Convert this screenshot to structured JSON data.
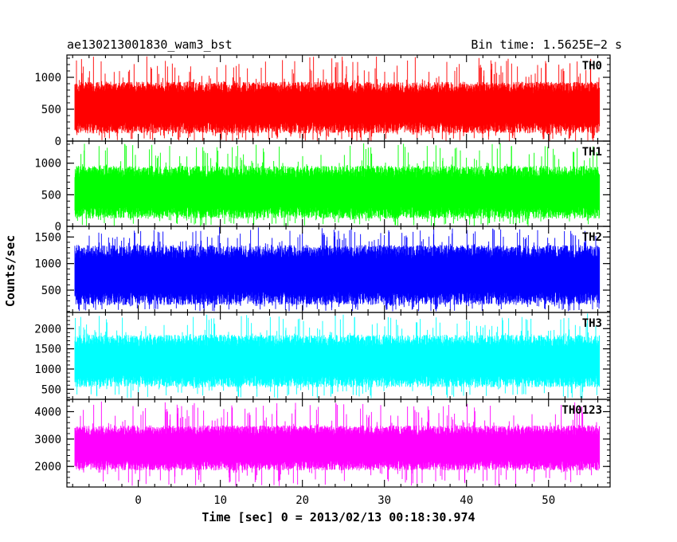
{
  "header": {
    "left_title": "ae130213001830_wam3_bst",
    "right_title": "Bin time: 1.5625E−2 s"
  },
  "chart_data": {
    "type": "line",
    "title": "ae130213001830_wam3_bst",
    "subtitle": "Bin time: 1.5625E−2 s",
    "xlabel": "Time [sec] 0 = 2013/02/13 00:18:30.974",
    "ylabel": "Counts/sec",
    "xlim": [
      -8.7,
      57.5
    ],
    "data_x_range": [
      -7.7,
      56.1
    ],
    "x_ticks": [
      0,
      10,
      20,
      30,
      40,
      50
    ],
    "x_minor_step": 2,
    "grid": false,
    "panels": [
      {
        "name": "TH0",
        "color": "#ff0000",
        "ylim": [
          0,
          1350
        ],
        "y_ticks": [
          0,
          500,
          1000
        ],
        "y_minor_step": 100,
        "typical_range": [
          120,
          930
        ],
        "max_value": 1330,
        "min_value": 0
      },
      {
        "name": "TH1",
        "color": "#00ff00",
        "ylim": [
          0,
          1350
        ],
        "y_ticks": [
          0,
          500,
          1000
        ],
        "y_minor_step": 100,
        "typical_range": [
          120,
          960
        ],
        "max_value": 1340,
        "min_value": 0
      },
      {
        "name": "TH2",
        "color": "#0000ff",
        "ylim": [
          80,
          1700
        ],
        "y_ticks": [
          500,
          1000,
          1500
        ],
        "y_minor_step": 100,
        "typical_range": [
          220,
          1350
        ],
        "max_value": 1690,
        "min_value": 100
      },
      {
        "name": "TH3",
        "color": "#00ffff",
        "ylim": [
          250,
          2400
        ],
        "y_ticks": [
          500,
          1000,
          1500,
          2000
        ],
        "y_minor_step": 100,
        "typical_range": [
          550,
          1850
        ],
        "max_value": 2380,
        "min_value": 270
      },
      {
        "name": "TH0123",
        "color": "#ff00ff",
        "ylim": [
          1250,
          4450
        ],
        "y_ticks": [
          2000,
          3000,
          4000
        ],
        "y_minor_step": 200,
        "typical_range": [
          1850,
          3500
        ],
        "max_value": 4400,
        "min_value": 1280
      }
    ]
  }
}
